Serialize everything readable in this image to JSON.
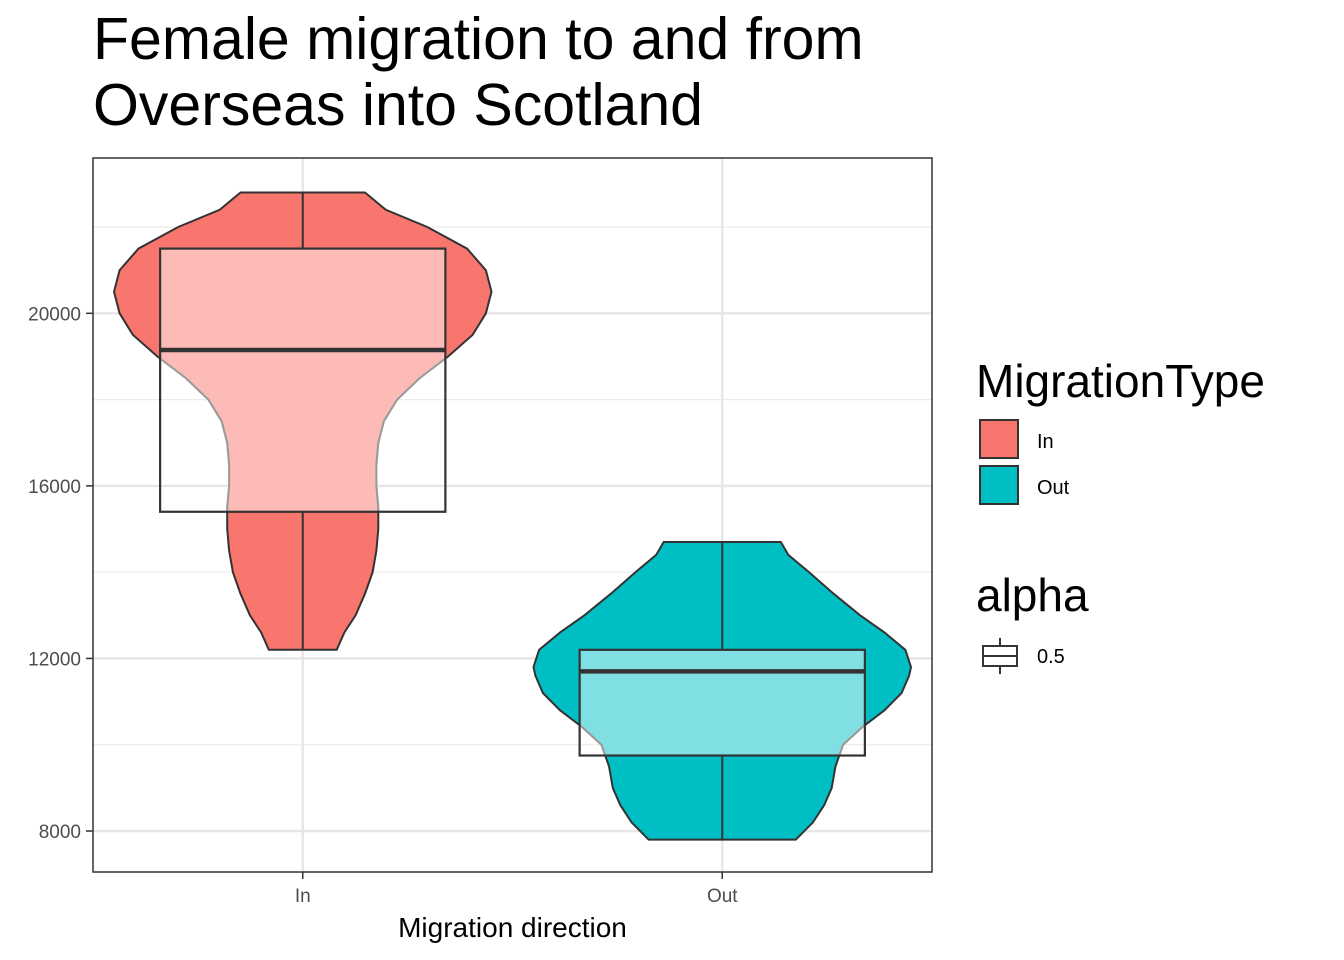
{
  "title": [
    "Female migration to and from",
    "Overseas into Scotland"
  ],
  "chart_data": {
    "type": "violin",
    "xlabel": "Migration direction",
    "ylabel": "",
    "categories": [
      "In",
      "Out"
    ],
    "ylim": [
      7050,
      23600
    ],
    "yticks": [
      8000,
      12000,
      16000,
      20000
    ],
    "grid": true,
    "series": [
      {
        "name": "In",
        "color": "#F8766D",
        "min": 12200,
        "q1": 15400,
        "median": 19150,
        "q3": 21500,
        "max": 22800,
        "density": [
          [
            12200,
            0.18
          ],
          [
            12600,
            0.22
          ],
          [
            13000,
            0.28
          ],
          [
            13500,
            0.33
          ],
          [
            14000,
            0.37
          ],
          [
            14500,
            0.39
          ],
          [
            15000,
            0.4
          ],
          [
            15500,
            0.4
          ],
          [
            16000,
            0.39
          ],
          [
            16500,
            0.39
          ],
          [
            17000,
            0.4
          ],
          [
            17500,
            0.43
          ],
          [
            18000,
            0.5
          ],
          [
            18500,
            0.62
          ],
          [
            19000,
            0.77
          ],
          [
            19500,
            0.9
          ],
          [
            20000,
            0.97
          ],
          [
            20500,
            1.0
          ],
          [
            21000,
            0.97
          ],
          [
            21500,
            0.87
          ],
          [
            22000,
            0.66
          ],
          [
            22400,
            0.44
          ],
          [
            22800,
            0.33
          ]
        ]
      },
      {
        "name": "Out",
        "color": "#00BFC4",
        "min": 7800,
        "q1": 9750,
        "median": 11700,
        "q3": 12200,
        "max": 14700,
        "density": [
          [
            7800,
            0.39
          ],
          [
            8200,
            0.48
          ],
          [
            8600,
            0.54
          ],
          [
            9000,
            0.58
          ],
          [
            9500,
            0.6
          ],
          [
            10000,
            0.64
          ],
          [
            10400,
            0.74
          ],
          [
            10800,
            0.86
          ],
          [
            11200,
            0.95
          ],
          [
            11600,
            0.99
          ],
          [
            11800,
            1.0
          ],
          [
            12200,
            0.97
          ],
          [
            12600,
            0.86
          ],
          [
            13000,
            0.73
          ],
          [
            13500,
            0.59
          ],
          [
            14000,
            0.46
          ],
          [
            14400,
            0.35
          ],
          [
            14700,
            0.31
          ]
        ]
      }
    ],
    "legend": {
      "placement": "right",
      "fill_title": "MigrationType",
      "fill_entries": [
        "In",
        "Out"
      ],
      "alpha_title": "alpha",
      "alpha_entries": [
        "0.5"
      ]
    }
  }
}
